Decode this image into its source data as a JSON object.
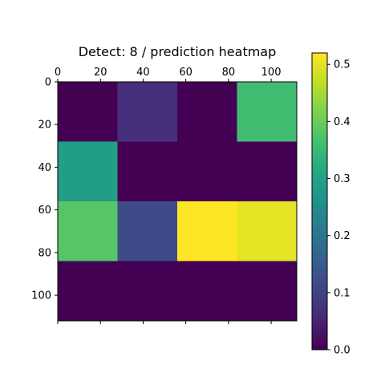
{
  "chart_data": {
    "type": "heatmap",
    "title": "Detect: 8 / prediction heatmap",
    "xlabel": "",
    "ylabel": "",
    "x_extent": [
      0,
      112
    ],
    "y_extent": [
      0,
      112
    ],
    "x_ticks": [
      0,
      20,
      40,
      60,
      80,
      100
    ],
    "y_ticks": [
      0,
      20,
      40,
      60,
      80,
      100
    ],
    "x_tick_labels": [
      "0",
      "20",
      "40",
      "60",
      "80",
      "100"
    ],
    "y_tick_labels": [
      "0",
      "20",
      "40",
      "60",
      "80",
      "100"
    ],
    "x_axis_position": "top",
    "grid": false,
    "cell_size": 28,
    "values": [
      [
        0.0,
        0.07,
        0.0,
        0.36
      ],
      [
        0.29,
        0.0,
        0.0,
        0.0
      ],
      [
        0.38,
        0.12,
        0.52,
        0.5
      ],
      [
        0.0,
        0.0,
        0.0,
        0.0
      ]
    ],
    "colorbar": {
      "min": 0.0,
      "max": 0.52,
      "ticks": [
        0.0,
        0.1,
        0.2,
        0.3,
        0.4,
        0.5
      ],
      "tick_labels": [
        "0.0",
        "0.1",
        "0.2",
        "0.3",
        "0.4",
        "0.5"
      ],
      "colormap": "viridis",
      "position": "right"
    }
  }
}
